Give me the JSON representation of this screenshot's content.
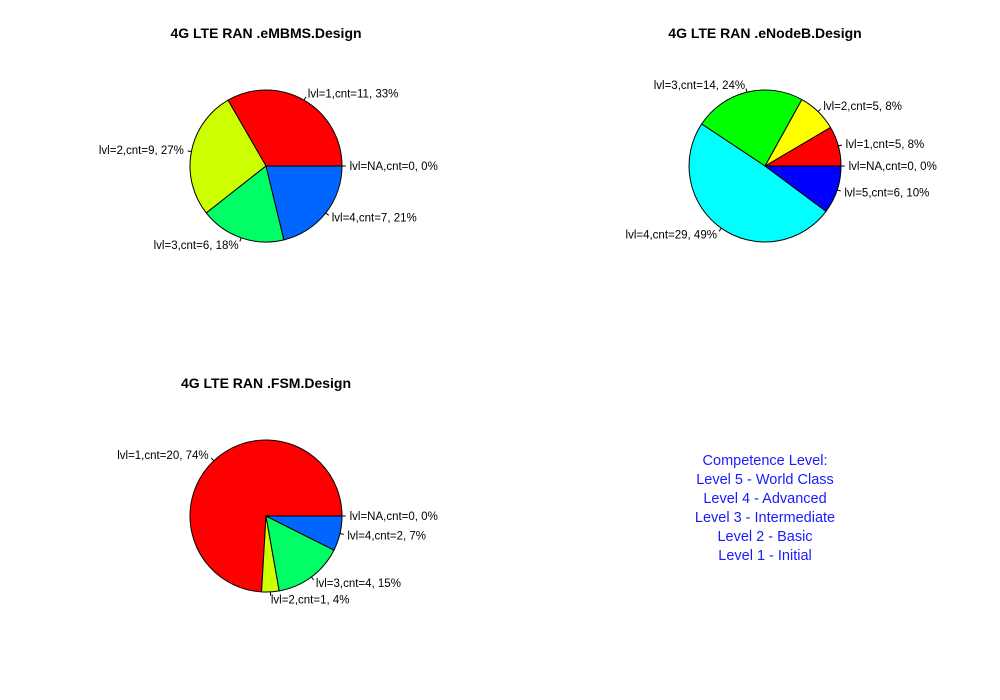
{
  "chart_data": [
    {
      "type": "pie",
      "title": "4G LTE RAN .eMBMS.Design",
      "slices": [
        {
          "label": "lvl=NA,cnt=0, 0%",
          "value": 0,
          "color": "#ff0000"
        },
        {
          "label": "lvl=1,cnt=11, 33%",
          "value": 11,
          "color": "#ff0000"
        },
        {
          "label": "lvl=2,cnt=9, 27%",
          "value": 9,
          "color": "#ccff00"
        },
        {
          "label": "lvl=3,cnt=6, 18%",
          "value": 6,
          "color": "#00ff66"
        },
        {
          "label": "lvl=4,cnt=7, 21%",
          "value": 7,
          "color": "#0066ff"
        }
      ]
    },
    {
      "type": "pie",
      "title": "4G LTE RAN .eNodeB.Design",
      "slices": [
        {
          "label": "lvl=NA,cnt=0, 0%",
          "value": 0,
          "color": "#ff0000"
        },
        {
          "label": "lvl=1,cnt=5, 8%",
          "value": 5,
          "color": "#ff0000"
        },
        {
          "label": "lvl=2,cnt=5, 8%",
          "value": 5,
          "color": "#ffff00"
        },
        {
          "label": "lvl=3,cnt=14, 24%",
          "value": 14,
          "color": "#00ff00"
        },
        {
          "label": "lvl=4,cnt=29, 49%",
          "value": 29,
          "color": "#00ffff"
        },
        {
          "label": "lvl=5,cnt=6, 10%",
          "value": 6,
          "color": "#0000ff"
        }
      ]
    },
    {
      "type": "pie",
      "title": "4G LTE RAN .FSM.Design",
      "slices": [
        {
          "label": "lvl=NA,cnt=0, 0%",
          "value": 0,
          "color": "#ff0000"
        },
        {
          "label": "lvl=1,cnt=20, 74%",
          "value": 20,
          "color": "#ff0000"
        },
        {
          "label": "lvl=2,cnt=1, 4%",
          "value": 1,
          "color": "#ccff00"
        },
        {
          "label": "lvl=3,cnt=4, 15%",
          "value": 4,
          "color": "#00ff66"
        },
        {
          "label": "lvl=4,cnt=2, 7%",
          "value": 2,
          "color": "#0066ff"
        }
      ]
    }
  ],
  "legend": {
    "heading": "Competence Level:",
    "lines": [
      "Level 5 - World Class",
      "Level 4 - Advanced",
      "Level 3 - Intermediate",
      "Level 2 - Basic",
      "Level 1 - Initial"
    ]
  }
}
